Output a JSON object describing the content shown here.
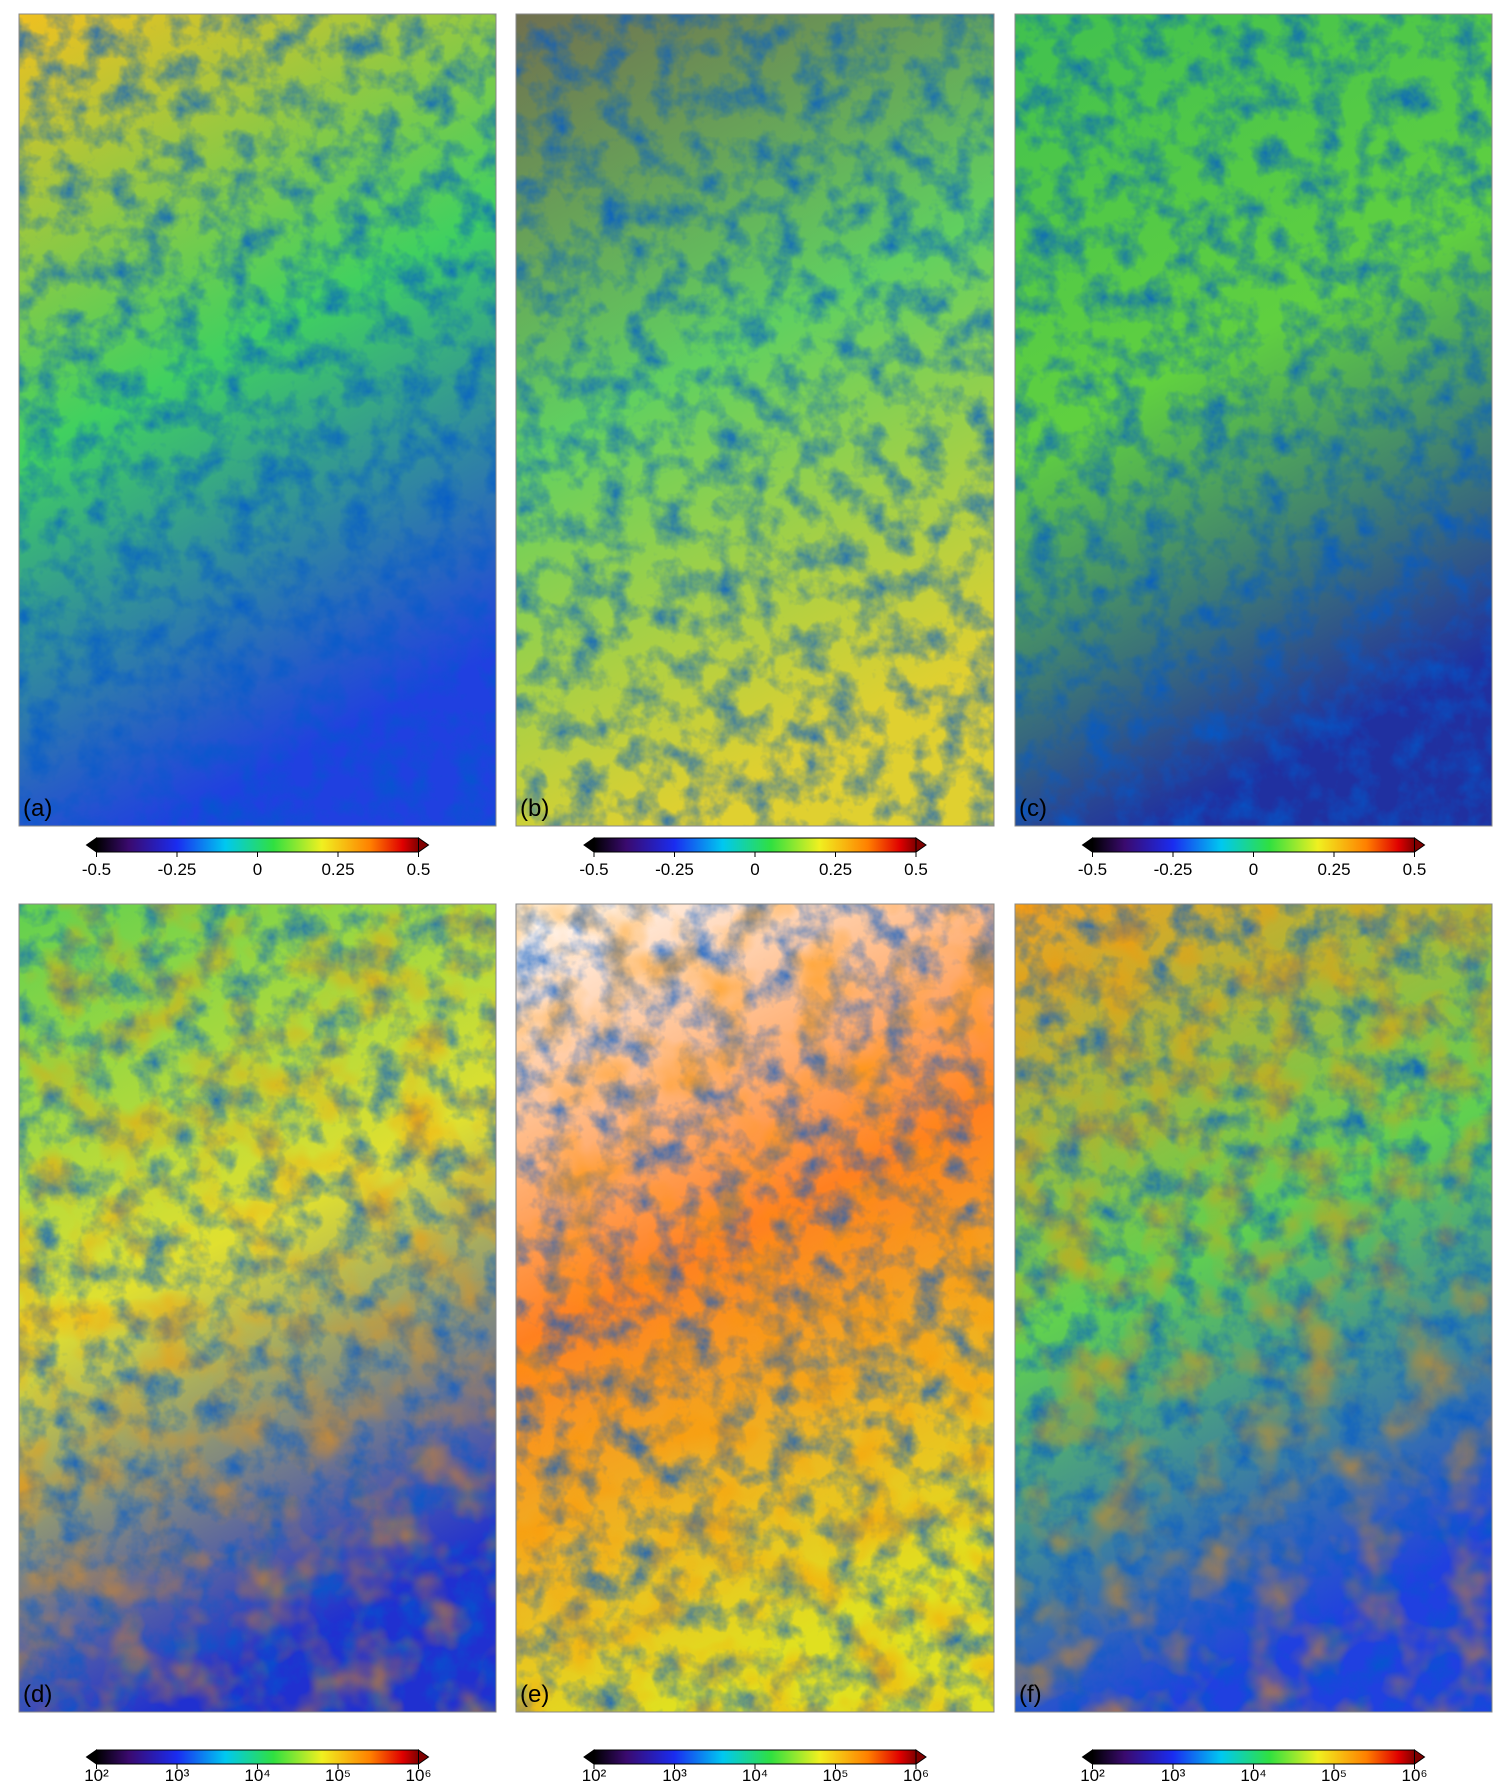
{
  "panels": [
    {
      "label": "(a)",
      "colorbar": {
        "range": [
          -0.5,
          0.5
        ],
        "ticks": [
          -0.5,
          -0.25,
          0,
          0.25,
          0.5
        ],
        "log": false
      }
    },
    {
      "label": "(b)",
      "colorbar": {
        "range": [
          -0.5,
          0.5
        ],
        "ticks": [
          -0.5,
          -0.25,
          0,
          0.25,
          0.5
        ],
        "log": false
      }
    },
    {
      "label": "(c)",
      "colorbar": {
        "range": [
          -0.5,
          0.5
        ],
        "ticks": [
          -0.5,
          -0.25,
          0,
          0.25,
          0.5
        ],
        "log": false
      }
    },
    {
      "label": "(d)",
      "colorbar": {
        "range": [
          100,
          1000000
        ],
        "log": true,
        "ticks": [
          {
            "value": 100,
            "label": "10²"
          },
          {
            "value": 1000,
            "label": "10³"
          },
          {
            "value": 10000,
            "label": "10⁴"
          },
          {
            "value": 100000,
            "label": "10⁵"
          },
          {
            "value": 1000000,
            "label": "10⁶"
          }
        ]
      }
    },
    {
      "label": "(e)",
      "colorbar": {
        "range": [
          100,
          1000000
        ],
        "log": true,
        "ticks": [
          {
            "value": 100,
            "label": "10²"
          },
          {
            "value": 1000,
            "label": "10³"
          },
          {
            "value": 10000,
            "label": "10⁴"
          },
          {
            "value": 100000,
            "label": "10⁵"
          },
          {
            "value": 1000000,
            "label": "10⁶"
          }
        ]
      }
    },
    {
      "label": "(f)",
      "colorbar": {
        "range": [
          100,
          1000000
        ],
        "log": true,
        "ticks": [
          {
            "value": 100,
            "label": "10²"
          },
          {
            "value": 1000,
            "label": "10³"
          },
          {
            "value": 10000,
            "label": "10⁴"
          },
          {
            "value": 100000,
            "label": "10⁵"
          },
          {
            "value": 1000000,
            "label": "10⁶"
          }
        ]
      }
    }
  ]
}
